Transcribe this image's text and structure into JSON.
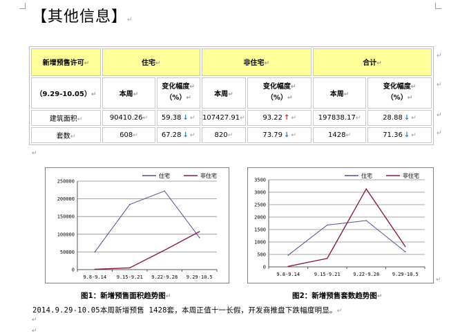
{
  "heading": "【其他信息】",
  "table": {
    "header1": [
      "新增预售许可",
      "住宅",
      "非住宅",
      "合计"
    ],
    "period": "（9.29-10.05）",
    "this_week": "本周",
    "change_label_line1": "变化幅度",
    "change_label_line2": "（%）",
    "rows": [
      {
        "label": "建筑面积",
        "res_val": "90410.26",
        "res_chg": "59.38",
        "res_dir": "down",
        "nonres_val": "107427.91",
        "nonres_chg": "93.22",
        "nonres_dir": "up",
        "tot_val": "197838.17",
        "tot_chg": "28.88",
        "tot_dir": "down"
      },
      {
        "label": "套数",
        "res_val": "608",
        "res_chg": "67.28",
        "res_dir": "down",
        "nonres_val": "820",
        "nonres_chg": "73.79",
        "nonres_dir": "down",
        "tot_val": "1428",
        "tot_chg": "71.36",
        "tot_dir": "down"
      }
    ]
  },
  "chart_data": [
    {
      "type": "line",
      "title": "图1：新增预售面积趋势图",
      "categories": [
        "9.8-9.14",
        "9.15-9.21",
        "9.22-9.28",
        "9.29-10.5"
      ],
      "ylim": [
        0,
        250000
      ],
      "yticks": [
        "0",
        "50000",
        "100000",
        "150000",
        "200000",
        "250000"
      ],
      "grid": true,
      "legend": "top",
      "series": [
        {
          "name": "住宅",
          "color": "#4f4f8f",
          "values": [
            50000,
            184000,
            222000,
            90410
          ]
        },
        {
          "name": "非住宅",
          "color": "#8b1a4a",
          "values": [
            1000,
            5000,
            55000,
            107428
          ]
        }
      ]
    },
    {
      "type": "line",
      "title": "图2：新增预售套数趋势图",
      "categories": [
        "9.8-9.14",
        "9.15-9.21",
        "9.22-9.28",
        "9.29-10.5"
      ],
      "ylim": [
        0,
        3500
      ],
      "yticks": [
        "0",
        "500",
        "1000",
        "1500",
        "2000",
        "2500",
        "3000",
        "3500"
      ],
      "grid": true,
      "legend": "top",
      "series": [
        {
          "name": "住宅",
          "color": "#4f4f8f",
          "values": [
            470,
            1680,
            1860,
            608
          ]
        },
        {
          "name": "非住宅",
          "color": "#8b1a4a",
          "values": [
            20,
            340,
            3130,
            820
          ]
        }
      ]
    }
  ],
  "paragraph": "2014.9.29-10.05本周新增预售 1428套，本周正值十一长假，开发商推盘下跌幅度明显。",
  "para_mark": "↵"
}
